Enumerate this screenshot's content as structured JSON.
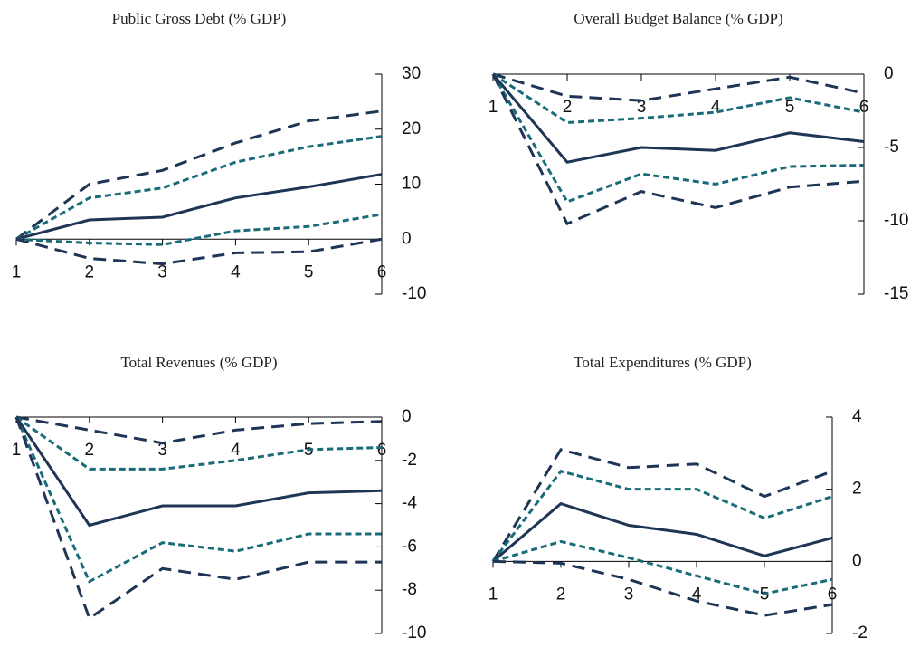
{
  "chart_data": [
    {
      "type": "line",
      "title": "Public Gross Debt (% GDP)",
      "categories": [
        "1",
        "2",
        "3",
        "4",
        "5",
        "6"
      ],
      "ylim": [
        -10,
        30
      ],
      "yticks": [
        -10,
        0,
        10,
        20,
        30
      ],
      "series": [
        {
          "color": "#1f3556",
          "dash": "long",
          "values": [
            0,
            10,
            12.5,
            17.5,
            21.5,
            23.3
          ]
        },
        {
          "color": "#1a6b7a",
          "dash": "short",
          "values": [
            0,
            7.5,
            9.3,
            14,
            16.8,
            18.7
          ]
        },
        {
          "color": "#1f3556",
          "dash": "solid",
          "values": [
            0,
            3.5,
            4,
            7.5,
            9.5,
            11.8
          ]
        },
        {
          "color": "#1a6b7a",
          "dash": "short",
          "values": [
            0,
            -0.7,
            -1,
            1.5,
            2.3,
            4.5
          ]
        },
        {
          "color": "#1f3556",
          "dash": "long",
          "values": [
            0,
            -3.5,
            -4.5,
            -2.5,
            -2.3,
            0
          ]
        }
      ]
    },
    {
      "type": "line",
      "title": "Overall Budget Balance (% GDP)",
      "categories": [
        "1",
        "2",
        "3",
        "4",
        "5",
        "6"
      ],
      "ylim": [
        -15,
        0
      ],
      "yticks": [
        -15,
        -10,
        -5,
        0
      ],
      "series": [
        {
          "color": "#1f3556",
          "dash": "long",
          "values": [
            0,
            -1.5,
            -1.8,
            -1,
            -0.2,
            -1.3
          ]
        },
        {
          "color": "#1a6b7a",
          "dash": "short",
          "values": [
            0,
            -3.3,
            -3,
            -2.6,
            -1.6,
            -2.6
          ]
        },
        {
          "color": "#1f3556",
          "dash": "solid",
          "values": [
            0,
            -6,
            -5,
            -5.2,
            -4,
            -4.6
          ]
        },
        {
          "color": "#1a6b7a",
          "dash": "short",
          "values": [
            0,
            -8.7,
            -6.8,
            -7.5,
            -6.3,
            -6.2
          ]
        },
        {
          "color": "#1f3556",
          "dash": "long",
          "values": [
            0,
            -10.2,
            -8,
            -9.1,
            -7.7,
            -7.3
          ]
        }
      ]
    },
    {
      "type": "line",
      "title": "Total Revenues (% GDP)",
      "categories": [
        "1",
        "2",
        "3",
        "4",
        "5",
        "6"
      ],
      "ylim": [
        -10,
        0
      ],
      "yticks": [
        -10,
        -8,
        -6,
        -4,
        -2,
        0
      ],
      "series": [
        {
          "color": "#1f3556",
          "dash": "long",
          "values": [
            0,
            -0.6,
            -1.2,
            -0.6,
            -0.3,
            -0.2
          ]
        },
        {
          "color": "#1a6b7a",
          "dash": "short",
          "values": [
            0,
            -2.4,
            -2.4,
            -2,
            -1.5,
            -1.4
          ]
        },
        {
          "color": "#1f3556",
          "dash": "solid",
          "values": [
            0,
            -5,
            -4.1,
            -4.1,
            -3.5,
            -3.4
          ]
        },
        {
          "color": "#1a6b7a",
          "dash": "short",
          "values": [
            0,
            -7.6,
            -5.8,
            -6.2,
            -5.4,
            -5.4
          ]
        },
        {
          "color": "#1f3556",
          "dash": "long",
          "values": [
            0,
            -9.3,
            -7,
            -7.5,
            -6.7,
            -6.7
          ]
        }
      ]
    },
    {
      "type": "line",
      "title": "Total Expenditures (% GDP)",
      "categories": [
        "1",
        "2",
        "3",
        "4",
        "5",
        "6"
      ],
      "ylim": [
        -2,
        4
      ],
      "yticks": [
        -2,
        0,
        2,
        4
      ],
      "series": [
        {
          "color": "#1f3556",
          "dash": "long",
          "values": [
            0,
            3.1,
            2.6,
            2.7,
            1.8,
            2.5
          ]
        },
        {
          "color": "#1a6b7a",
          "dash": "short",
          "values": [
            0,
            2.5,
            2,
            2,
            1.2,
            1.8
          ]
        },
        {
          "color": "#1f3556",
          "dash": "solid",
          "values": [
            0,
            1.6,
            1,
            0.75,
            0.15,
            0.65
          ]
        },
        {
          "color": "#1a6b7a",
          "dash": "short",
          "values": [
            0,
            0.55,
            0.1,
            -0.4,
            -0.9,
            -0.5
          ]
        },
        {
          "color": "#1f3556",
          "dash": "long",
          "values": [
            0,
            -0.05,
            -0.5,
            -1.1,
            -1.5,
            -1.2
          ]
        }
      ]
    }
  ]
}
